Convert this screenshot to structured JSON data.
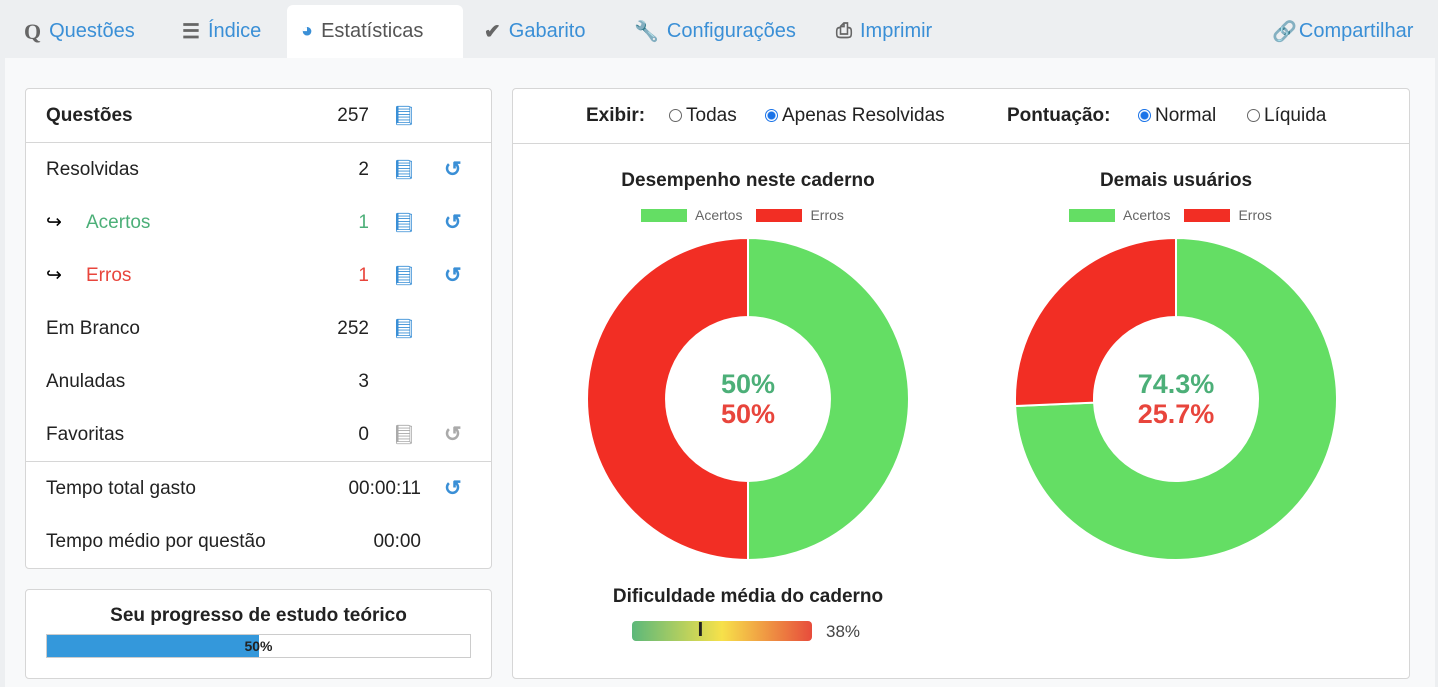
{
  "tabs": [
    {
      "label": "Questões",
      "icon": "Q"
    },
    {
      "label": "Índice",
      "icon": "list-icon"
    },
    {
      "label": "Estatísticas",
      "icon": "pie-chart-icon",
      "active": true
    },
    {
      "label": "Gabarito",
      "icon": "check-icon"
    },
    {
      "label": "Configurações",
      "icon": "wrench-icon"
    },
    {
      "label": "Imprimir",
      "icon": "printer-icon"
    }
  ],
  "share_label": "Compartilhar",
  "stats": {
    "questoes": {
      "label": "Questões",
      "value": "257"
    },
    "resolvidas": {
      "label": "Resolvidas",
      "value": "2"
    },
    "acertos": {
      "label": "Acertos",
      "value": "1"
    },
    "erros": {
      "label": "Erros",
      "value": "1"
    },
    "branco": {
      "label": "Em Branco",
      "value": "252"
    },
    "anuladas": {
      "label": "Anuladas",
      "value": "3"
    },
    "favoritas": {
      "label": "Favoritas",
      "value": "0"
    },
    "tempo_total": {
      "label": "Tempo total gasto",
      "value": "00:00:11"
    },
    "tempo_medio": {
      "label": "Tempo médio por questão",
      "value": "00:00"
    }
  },
  "progress": {
    "title": "Seu progresso de estudo teórico",
    "label": "50%",
    "value": 50
  },
  "filters": {
    "exibir_label": "Exibir:",
    "todas": "Todas",
    "apenas": "Apenas Resolvidas",
    "pontuacao_label": "Pontuação:",
    "normal": "Normal",
    "liquida": "Líquida"
  },
  "colors": {
    "green": "#64de64",
    "red": "#f22e24",
    "blue": "#3a8fd6"
  },
  "chart_data": [
    {
      "type": "pie",
      "title": "Desempenho neste caderno",
      "legend": [
        "Acertos",
        "Erros"
      ],
      "values": [
        50,
        50
      ],
      "labels": [
        "50%",
        "50%"
      ]
    },
    {
      "type": "pie",
      "title": "Demais usuários",
      "legend": [
        "Acertos",
        "Erros"
      ],
      "values": [
        74.3,
        25.7
      ],
      "labels": [
        "74.3%",
        "25.7%"
      ]
    }
  ],
  "difficulty": {
    "title": "Dificuldade média do caderno",
    "label": "38%",
    "value": 38
  }
}
